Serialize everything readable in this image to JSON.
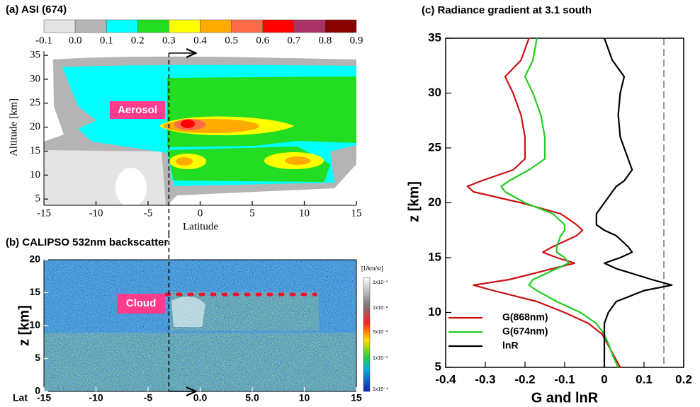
{
  "chart_data": [
    {
      "type": "contour",
      "title": "(a) ASI (674)",
      "xlabel": "Latitude",
      "ylabel": "Altitude [km]",
      "xlim": [
        -15,
        15
      ],
      "xticks": [
        -15,
        -10,
        -5,
        0,
        5,
        10,
        15
      ],
      "ylim": [
        3.7,
        35.9
      ],
      "yticks": [
        5,
        10,
        15,
        20,
        25,
        30,
        35
      ],
      "levels": [
        -0.1,
        {
          "value": 0,
          "label": "0.0"
        },
        0.1,
        0.2,
        0.3,
        0.4,
        0.5,
        0.6,
        0.7,
        0.8,
        0.9
      ],
      "colors": [
        "#e4e4e4",
        "#b4b4b4",
        "#00ffff",
        "#22dd22",
        "#ffff00",
        "#ffaa00",
        "#ff6a4a",
        "#ff0000",
        "#aa3366",
        "#880000"
      ],
      "vline": -3,
      "annotation": "Aerosol"
    },
    {
      "type": "image",
      "title": "(b) CALIPSO 532nm backscatter",
      "xlabel": "Lat",
      "ylabel": "z [km]",
      "xlim": [
        -15,
        15
      ],
      "xticks": [
        -15,
        -10,
        -5,
        {
          "value": 0,
          "label": "0.0"
        },
        {
          "value": 5,
          "label": "5.0"
        },
        10,
        15
      ],
      "ylim": [
        0,
        20
      ],
      "yticks": [
        0,
        5,
        10,
        15,
        20
      ],
      "colorbar_unit": "[1/km/sr]",
      "colorbar_labels": [
        "1x10⁻¹",
        "1x10⁻²",
        "5x10⁻³",
        "1x10⁻³",
        "1x10⁻⁴"
      ],
      "vline": -3,
      "annotation": "Cloud"
    },
    {
      "type": "line",
      "title": "(c) Radiance gradient at 3.1 south",
      "xlabel": "G and lnR",
      "ylabel": "z [km]",
      "xlim": [
        -0.4,
        0.2
      ],
      "xticks": [
        -0.4,
        -0.3,
        -0.2,
        -0.1,
        0,
        0.1,
        0.2
      ],
      "ylim": [
        5,
        35
      ],
      "yticks": [
        5,
        10,
        15,
        20,
        25,
        30,
        35
      ],
      "vline": 0.15,
      "legend": "lower left",
      "z": [
        35,
        33,
        31.5,
        30,
        28,
        26,
        24,
        23,
        22,
        21.5,
        21,
        20,
        19,
        18,
        17.5,
        17,
        16,
        15.5,
        15,
        14.5,
        14,
        13,
        12.5,
        12,
        11,
        10,
        9,
        8,
        7,
        6,
        5
      ],
      "series": [
        {
          "name": "G(868nm)",
          "color": "#cc1111",
          "values": [
            -0.19,
            -0.21,
            -0.25,
            -0.23,
            -0.21,
            -0.2,
            -0.2,
            -0.23,
            -0.31,
            -0.345,
            -0.33,
            -0.21,
            -0.11,
            -0.07,
            -0.055,
            -0.07,
            -0.13,
            -0.155,
            -0.12,
            -0.075,
            -0.13,
            -0.24,
            -0.33,
            -0.28,
            -0.17,
            -0.1,
            -0.04,
            -0.005,
            0.01,
            0.025,
            0.04
          ]
        },
        {
          "name": "G(674nm)",
          "color": "#22cc22",
          "values": [
            -0.17,
            -0.18,
            -0.2,
            -0.18,
            -0.16,
            -0.15,
            -0.15,
            -0.19,
            -0.24,
            -0.26,
            -0.25,
            -0.2,
            -0.13,
            -0.1,
            -0.1,
            -0.11,
            -0.12,
            -0.12,
            -0.1,
            -0.09,
            -0.12,
            -0.18,
            -0.19,
            -0.17,
            -0.12,
            -0.06,
            -0.02,
            0,
            0.012,
            0.022,
            0.035
          ]
        },
        {
          "name": "lnR",
          "color": "#000000",
          "values": [
            0,
            0.02,
            0.05,
            0.04,
            0.035,
            0.04,
            0.06,
            0.07,
            0.05,
            0.03,
            0.02,
            0,
            -0.02,
            -0.02,
            0,
            0.03,
            0.06,
            0.07,
            0.04,
            0,
            0.03,
            0.12,
            0.17,
            0.1,
            0.03,
            0.01,
            0,
            0,
            0,
            0,
            0
          ]
        }
      ]
    }
  ]
}
